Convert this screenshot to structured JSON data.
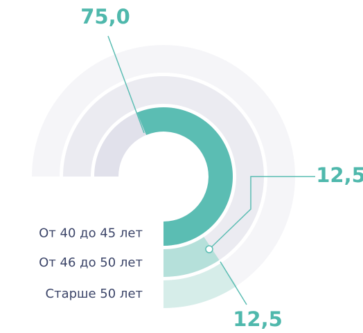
{
  "chart_data": {
    "type": "radial-bar",
    "categories": [
      "От 40 до 45 лет",
      "От 46 до 50 лет",
      "Старше 50 лет"
    ],
    "values": [
      75.0,
      12.5,
      12.5
    ],
    "value_labels": [
      "75,0",
      "12,5",
      "12,5"
    ],
    "colors": [
      "#5bbdb3",
      "#b5e0da",
      "#d6ede9"
    ],
    "track_colors": [
      "#e1e1eb",
      "#ebebf1",
      "#f5f5f8"
    ],
    "rlim": [
      0,
      100
    ]
  }
}
